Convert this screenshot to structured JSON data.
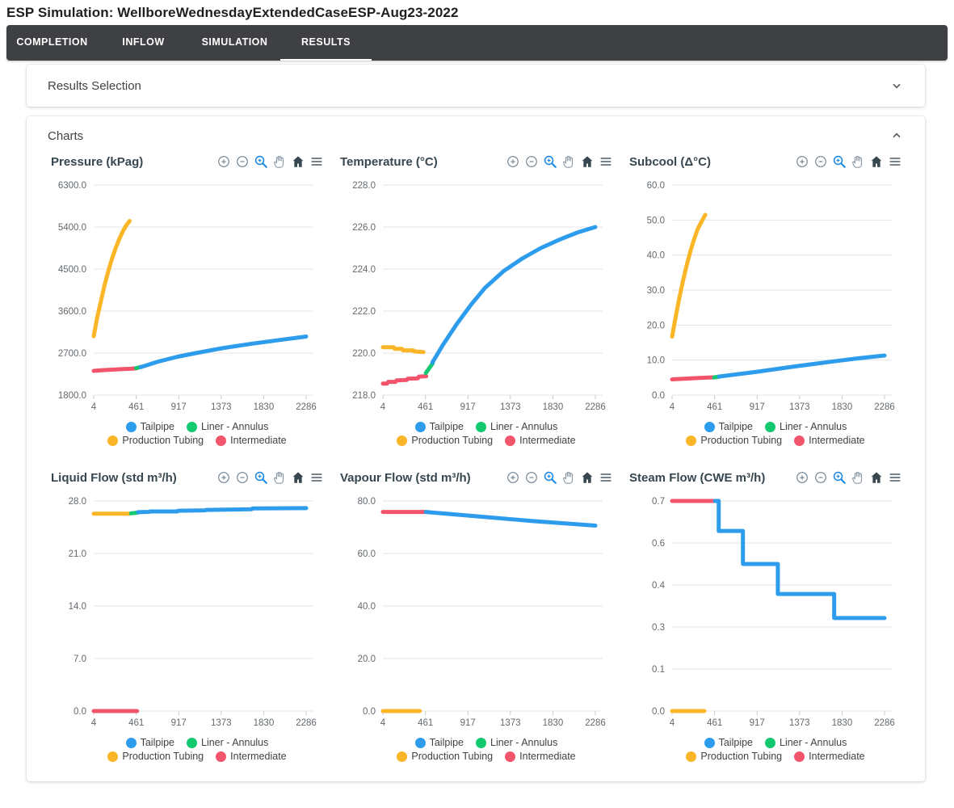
{
  "page": {
    "title": "ESP Simulation: WellboreWednesdayExtendedCaseESP-Aug23-2022"
  },
  "tabs": [
    {
      "label": "COMPLETION",
      "active": false
    },
    {
      "label": "INFLOW",
      "active": false
    },
    {
      "label": "SIMULATION",
      "active": false
    },
    {
      "label": "RESULTS",
      "active": true
    }
  ],
  "panels": {
    "results_selection": {
      "label": "Results Selection",
      "chevron": "chevron-down-icon"
    },
    "charts": {
      "label": "Charts",
      "chevron": "chevron-up-icon"
    }
  },
  "toolbar_icons": [
    "zoom-in-icon",
    "zoom-out-icon",
    "box-zoom-icon",
    "pan-icon",
    "home-icon",
    "menu-icon"
  ],
  "legend": [
    {
      "label": "Tailpipe",
      "color": "#2d9cec"
    },
    {
      "label": "Liner - Annulus",
      "color": "#12c970"
    },
    {
      "label": "Production Tubing",
      "color": "#fbb628"
    },
    {
      "label": "Intermediate",
      "color": "#f2546b"
    }
  ],
  "colors": {
    "tab_bar": "#3e4043",
    "accent_blue": "#1e88e5",
    "icon_gray": "#6e8090",
    "icon_hand": "#8a98a5",
    "icon_dark": "#37474f",
    "grid_line": "#e4e4e4",
    "tick_mark": "#c9c9c9",
    "tick_label": "#63696e"
  },
  "chart_data": [
    {
      "type": "line",
      "title": "Pressure (kPag)",
      "xlim": [
        4,
        2286
      ],
      "x_ticks": [
        4,
        461,
        917,
        1373,
        1830,
        2286
      ],
      "ylim": [
        1800,
        6300
      ],
      "y_ticks": [
        {
          "value": 6300,
          "label": "6300.0"
        },
        {
          "value": 5400,
          "label": "5400.0"
        },
        {
          "value": 4500,
          "label": "4500.0"
        },
        {
          "value": 3600,
          "label": "3600.0"
        },
        {
          "value": 2700,
          "label": "2700.0"
        },
        {
          "value": 1800,
          "label": "1800.0"
        }
      ],
      "series": [
        {
          "name": "Intermediate",
          "color": "#f2546b",
          "points": [
            [
              4,
              2320
            ],
            [
              100,
              2335
            ],
            [
              200,
              2345
            ],
            [
              300,
              2355
            ],
            [
              400,
              2365
            ],
            [
              470,
              2375
            ]
          ]
        },
        {
          "name": "Production Tubing",
          "color": "#fbb628",
          "points": [
            [
              4,
              3060
            ],
            [
              40,
              3450
            ],
            [
              80,
              3800
            ],
            [
              120,
              4150
            ],
            [
              160,
              4450
            ],
            [
              200,
              4720
            ],
            [
              240,
              4950
            ],
            [
              280,
              5150
            ],
            [
              320,
              5320
            ],
            [
              355,
              5440
            ],
            [
              390,
              5530
            ]
          ]
        },
        {
          "name": "Liner - Annulus",
          "color": "#12c970",
          "points": [
            [
              460,
              2378
            ],
            [
              515,
              2408
            ]
          ]
        },
        {
          "name": "Tailpipe",
          "color": "#2d9cec",
          "points": [
            [
              510,
              2400
            ],
            [
              700,
              2520
            ],
            [
              900,
              2620
            ],
            [
              1100,
              2700
            ],
            [
              1400,
              2810
            ],
            [
              1700,
              2900
            ],
            [
              2000,
              2980
            ],
            [
              2286,
              3055
            ]
          ]
        }
      ]
    },
    {
      "type": "line",
      "title": "Temperature (°C)",
      "xlim": [
        4,
        2286
      ],
      "x_ticks": [
        4,
        461,
        917,
        1373,
        1830,
        2286
      ],
      "ylim": [
        218,
        228
      ],
      "y_ticks": [
        {
          "value": 228,
          "label": "228.0"
        },
        {
          "value": 226,
          "label": "226.0"
        },
        {
          "value": 224,
          "label": "224.0"
        },
        {
          "value": 222,
          "label": "222.0"
        },
        {
          "value": 220,
          "label": "220.0"
        },
        {
          "value": 218,
          "label": "218.0"
        }
      ],
      "series": [
        {
          "name": "Intermediate",
          "color": "#f2546b",
          "points": [
            [
              4,
              218.55
            ],
            [
              50,
              218.55
            ],
            [
              60,
              218.63
            ],
            [
              140,
              218.63
            ],
            [
              150,
              218.7
            ],
            [
              260,
              218.72
            ],
            [
              270,
              218.78
            ],
            [
              380,
              218.8
            ],
            [
              390,
              218.88
            ],
            [
              470,
              218.9
            ]
          ]
        },
        {
          "name": "Production Tubing",
          "color": "#fbb628",
          "points": [
            [
              4,
              220.28
            ],
            [
              120,
              220.28
            ],
            [
              130,
              220.2
            ],
            [
              210,
              220.2
            ],
            [
              220,
              220.13
            ],
            [
              330,
              220.13
            ],
            [
              340,
              220.08
            ],
            [
              440,
              220.05
            ]
          ]
        },
        {
          "name": "Liner - Annulus",
          "color": "#12c970",
          "points": [
            [
              465,
              219.05
            ],
            [
              540,
              219.52
            ]
          ]
        },
        {
          "name": "Tailpipe",
          "color": "#2d9cec",
          "points": [
            [
              535,
              219.55
            ],
            [
              650,
              220.4
            ],
            [
              800,
              221.4
            ],
            [
              950,
              222.3
            ],
            [
              1100,
              223.1
            ],
            [
              1300,
              223.9
            ],
            [
              1500,
              224.5
            ],
            [
              1700,
              225.0
            ],
            [
              1900,
              225.4
            ],
            [
              2100,
              225.75
            ],
            [
              2286,
              226.0
            ]
          ]
        }
      ]
    },
    {
      "type": "line",
      "title": "Subcool (Δ°C)",
      "xlim": [
        4,
        2286
      ],
      "x_ticks": [
        4,
        461,
        917,
        1373,
        1830,
        2286
      ],
      "ylim": [
        0,
        60
      ],
      "y_ticks": [
        {
          "value": 60,
          "label": "60.0"
        },
        {
          "value": 50,
          "label": "50.0"
        },
        {
          "value": 40,
          "label": "40.0"
        },
        {
          "value": 30,
          "label": "30.0"
        },
        {
          "value": 20,
          "label": "20.0"
        },
        {
          "value": 10,
          "label": "10.0"
        },
        {
          "value": 0,
          "label": "0.0"
        }
      ],
      "series": [
        {
          "name": "Intermediate",
          "color": "#f2546b",
          "points": [
            [
              4,
              4.5
            ],
            [
              150,
              4.7
            ],
            [
              300,
              4.9
            ],
            [
              470,
              5.1
            ]
          ]
        },
        {
          "name": "Production Tubing",
          "color": "#fbb628",
          "points": [
            [
              4,
              16.7
            ],
            [
              40,
              22
            ],
            [
              80,
              27.5
            ],
            [
              120,
              32.5
            ],
            [
              160,
              37
            ],
            [
              200,
              41
            ],
            [
              240,
              44.5
            ],
            [
              280,
              47.5
            ],
            [
              320,
              49.5
            ],
            [
              360,
              51.5
            ]
          ]
        },
        {
          "name": "Liner - Annulus",
          "color": "#12c970",
          "points": [
            [
              455,
              5.05
            ],
            [
              515,
              5.3
            ]
          ]
        },
        {
          "name": "Tailpipe",
          "color": "#2d9cec",
          "points": [
            [
              510,
              5.3
            ],
            [
              900,
              6.6
            ],
            [
              1300,
              8.1
            ],
            [
              1700,
              9.5
            ],
            [
              2000,
              10.5
            ],
            [
              2286,
              11.3
            ]
          ]
        }
      ]
    },
    {
      "type": "line",
      "title": "Liquid Flow (std m³/h)",
      "xlim": [
        4,
        2286
      ],
      "x_ticks": [
        4,
        461,
        917,
        1373,
        1830,
        2286
      ],
      "ylim": [
        0,
        28
      ],
      "y_ticks": [
        {
          "value": 28,
          "label": "28.0"
        },
        {
          "value": 21,
          "label": "21.0"
        },
        {
          "value": 14,
          "label": "14.0"
        },
        {
          "value": 7,
          "label": "7.0"
        },
        {
          "value": 0,
          "label": "0.0"
        }
      ],
      "series": [
        {
          "name": "Intermediate",
          "color": "#f2546b",
          "points": [
            [
              4,
              0
            ],
            [
              470,
              0
            ]
          ]
        },
        {
          "name": "Production Tubing",
          "color": "#fbb628",
          "points": [
            [
              4,
              26.3
            ],
            [
              390,
              26.3
            ]
          ]
        },
        {
          "name": "Liner - Annulus",
          "color": "#12c970",
          "points": [
            [
              405,
              26.35
            ],
            [
              480,
              26.45
            ]
          ]
        },
        {
          "name": "Tailpipe",
          "color": "#2d9cec",
          "points": [
            [
              480,
              26.5
            ],
            [
              600,
              26.55
            ],
            [
              610,
              26.6
            ],
            [
              900,
              26.6
            ],
            [
              910,
              26.7
            ],
            [
              1200,
              26.75
            ],
            [
              1210,
              26.8
            ],
            [
              1700,
              26.9
            ],
            [
              1710,
              27.0
            ],
            [
              2286,
              27.05
            ]
          ]
        }
      ]
    },
    {
      "type": "line",
      "title": "Vapour Flow (std m³/h)",
      "xlim": [
        4,
        2286
      ],
      "x_ticks": [
        4,
        461,
        917,
        1373,
        1830,
        2286
      ],
      "ylim": [
        0,
        80
      ],
      "y_ticks": [
        {
          "value": 80,
          "label": "80.0"
        },
        {
          "value": 60,
          "label": "60.0"
        },
        {
          "value": 40,
          "label": "40.0"
        },
        {
          "value": 20,
          "label": "20.0"
        },
        {
          "value": 0,
          "label": "0.0"
        }
      ],
      "series": [
        {
          "name": "Intermediate",
          "color": "#f2546b",
          "points": [
            [
              4,
              75.8
            ],
            [
              470,
              75.8
            ]
          ]
        },
        {
          "name": "Production Tubing",
          "color": "#fbb628",
          "points": [
            [
              4,
              0
            ],
            [
              400,
              0
            ]
          ]
        },
        {
          "name": "Tailpipe",
          "color": "#2d9cec",
          "points": [
            [
              465,
              75.8
            ],
            [
              1000,
              74.2
            ],
            [
              1600,
              72.4
            ],
            [
              2286,
              70.6
            ]
          ]
        }
      ]
    },
    {
      "type": "line",
      "title": "Steam Flow (CWE m³/h)",
      "xlim": [
        4,
        2286
      ],
      "x_ticks": [
        4,
        461,
        917,
        1373,
        1830,
        2286
      ],
      "ylim": [
        0,
        0.7
      ],
      "y_ticks": [
        {
          "value": 0.7,
          "label": "0.7"
        },
        {
          "value": 0.56,
          "label": "0.6"
        },
        {
          "value": 0.42,
          "label": "0.4"
        },
        {
          "value": 0.28,
          "label": "0.3"
        },
        {
          "value": 0.14,
          "label": "0.1"
        },
        {
          "value": 0,
          "label": "0.0"
        }
      ],
      "series": [
        {
          "name": "Intermediate",
          "color": "#f2546b",
          "points": [
            [
              4,
              0.7
            ],
            [
              470,
              0.7
            ]
          ]
        },
        {
          "name": "Production Tubing",
          "color": "#fbb628",
          "points": [
            [
              4,
              0
            ],
            [
              350,
              0
            ]
          ]
        },
        {
          "name": "Tailpipe",
          "color": "#2d9cec",
          "points": [
            [
              465,
              0.7
            ],
            [
              505,
              0.7
            ],
            [
              505,
              0.6
            ],
            [
              765,
              0.6
            ],
            [
              765,
              0.49
            ],
            [
              1140,
              0.49
            ],
            [
              1140,
              0.39
            ],
            [
              1745,
              0.39
            ],
            [
              1745,
              0.31
            ],
            [
              2286,
              0.31
            ]
          ]
        }
      ]
    }
  ]
}
